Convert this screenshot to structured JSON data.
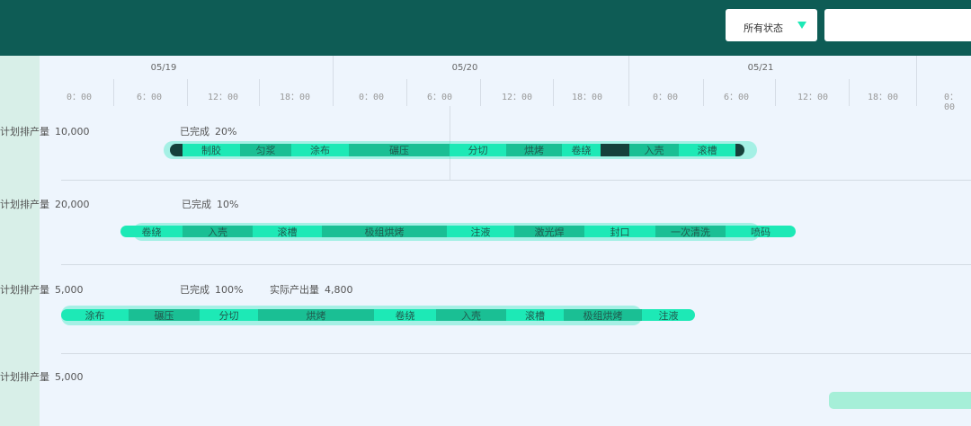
{
  "header": {
    "status_select": "所有状态",
    "search_value": ""
  },
  "timeline": {
    "dates": [
      "05/19",
      "05/20",
      "05/21"
    ],
    "hours": [
      "0：00",
      "6：00",
      "12：00",
      "18：00",
      "0：00",
      "6：00",
      "12：00",
      "18：00",
      "0：00",
      "6：00",
      "12：00",
      "18：00",
      "0：00"
    ]
  },
  "colors": {
    "header": "#0e5c55",
    "segment_light": "#1de9b6",
    "segment_dark": "#1abf94",
    "segment_done": "#16403b"
  },
  "orders": [
    {
      "plan_label": "计划排产量",
      "plan": "10,000",
      "done_label": "已完成",
      "done": "20%",
      "segments": [
        "",
        "制胶",
        "匀浆",
        "涂布",
        "碾压",
        "分切",
        "烘烤",
        "卷绕",
        "",
        "入壳",
        "滚槽",
        ""
      ]
    },
    {
      "plan_label": "计划排产量",
      "plan": "20,000",
      "done_label": "已完成",
      "done": "10%",
      "segments": [
        "卷绕",
        "入壳",
        "滚槽",
        "极组烘烤",
        "注液",
        "激光焊",
        "封口",
        "一次清洗",
        "喷码"
      ]
    },
    {
      "plan_label": "计划排产量",
      "plan": "5,000",
      "done_label": "已完成",
      "done": "100%",
      "actual_label": "实际产出量",
      "actual": "4,800",
      "segments": [
        "涂布",
        "碾压",
        "分切",
        "烘烤",
        "卷绕",
        "入壳",
        "滚槽",
        "极组烘烤",
        "注液"
      ]
    },
    {
      "plan_label": "计划排产量",
      "plan": "5,000"
    }
  ]
}
